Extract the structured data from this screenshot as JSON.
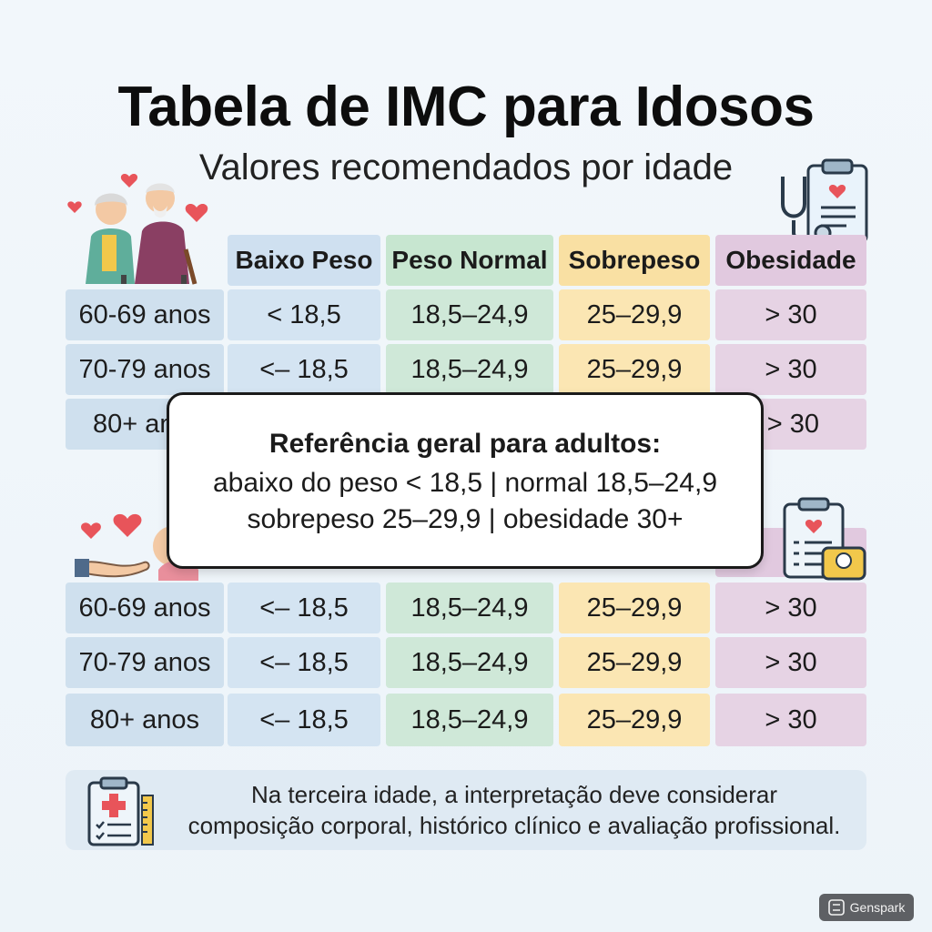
{
  "title": "Tabela de IMC para Idosos",
  "subtitle": "Valores recomendados por idade",
  "headers": [
    "Baixo Peso",
    "Peso Normal",
    "Sobrepeso",
    "Obesidade"
  ],
  "table1": [
    {
      "age": "60-69 anos",
      "cells": [
        "< 18,5",
        "18,5–24,9",
        "25–29,9",
        "> 30"
      ]
    },
    {
      "age": "70-79 anos",
      "cells": [
        "<– 18,5",
        "18,5–24,9",
        "25–29,9",
        "> 30"
      ]
    },
    {
      "age": "80+ anos",
      "cells": [
        "",
        "",
        "",
        "> 30"
      ]
    }
  ],
  "table2": [
    {
      "age": "60-69 anos",
      "cells": [
        "<– 18,5",
        "18,5–24,9",
        "25–29,9",
        "> 30"
      ]
    },
    {
      "age": "70-79 anos",
      "cells": [
        "<– 18,5",
        "18,5–24,9",
        "25–29,9",
        "> 30"
      ]
    },
    {
      "age": "80+ anos",
      "cells": [
        "<– 18,5",
        "18,5–24,9",
        "25–29,9",
        "> 30"
      ]
    }
  ],
  "overlay": {
    "title": "Referência geral para adultos:",
    "line1": "abaixo do peso < 18,5 | normal 18,5–24,9",
    "line2": "sobrepeso 25–29,9 | obesidade 30+"
  },
  "note": {
    "line1": "Na terceira idade, a interpretação deve considerar",
    "line2": "composição corporal, histórico clínico e avaliação profissional."
  },
  "badge": {
    "label": "Genspark"
  },
  "colors": {
    "baixo": "#d4e4f2",
    "normal": "#cfe8d8",
    "sobrepeso": "#fbe6b3",
    "obesidade": "#e6d3e4"
  },
  "icons": [
    "elderly-couple-icon",
    "heart-icon",
    "clipboard-stethoscope-icon",
    "caring-hands-icon",
    "clipboard-scale-icon",
    "medical-clipboard-ruler-icon"
  ]
}
